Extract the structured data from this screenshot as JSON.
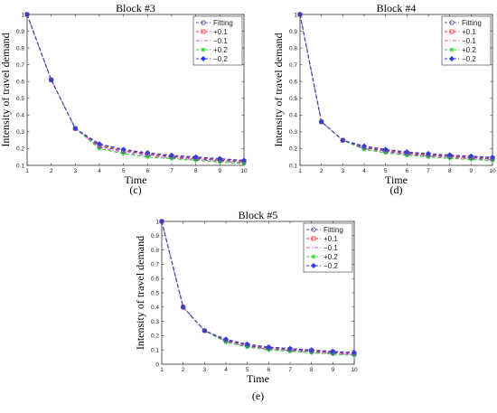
{
  "chart_data": [
    {
      "type": "line",
      "title": "Block #3",
      "caption": "(c)",
      "xlabel": "Time",
      "ylabel": "Intensity of travel demand",
      "x": [
        1,
        2,
        3,
        4,
        5,
        6,
        7,
        8,
        9,
        10
      ],
      "xlim": [
        1,
        10
      ],
      "ylim": [
        0.1,
        1
      ],
      "xticks": [
        "1",
        "2",
        "3",
        "4",
        "5",
        "6",
        "7",
        "8",
        "9",
        "10"
      ],
      "yticks": [
        "0.1",
        "0.2",
        "0.3",
        "0.4",
        "0.5",
        "0.6",
        "0.7",
        "0.8",
        "0.9",
        "1"
      ],
      "legend_position": "top-right",
      "series": [
        {
          "name": "Fitting",
          "color": "#4a4a9a",
          "marker": "circle",
          "values": [
            1.0,
            0.61,
            0.32,
            0.215,
            0.185,
            0.165,
            0.15,
            0.14,
            0.13,
            0.12
          ]
        },
        {
          "name": "+0.1",
          "color": "#ff3030",
          "marker": "square",
          "values": [
            1.0,
            0.61,
            0.32,
            0.222,
            0.19,
            0.17,
            0.155,
            0.145,
            0.135,
            0.125
          ]
        },
        {
          "name": "−0.1",
          "color": "#e050e0",
          "marker": "none",
          "values": [
            1.0,
            0.61,
            0.32,
            0.208,
            0.178,
            0.158,
            0.145,
            0.135,
            0.125,
            0.115
          ]
        },
        {
          "name": "+0.2",
          "color": "#30d030",
          "marker": "star",
          "values": [
            1.0,
            0.61,
            0.32,
            0.2,
            0.17,
            0.15,
            0.14,
            0.13,
            0.12,
            0.11
          ]
        },
        {
          "name": "−0.2",
          "color": "#2a3aee",
          "marker": "diamond",
          "values": [
            1.0,
            0.61,
            0.32,
            0.228,
            0.195,
            0.175,
            0.16,
            0.15,
            0.14,
            0.13
          ]
        }
      ]
    },
    {
      "type": "line",
      "title": "Block #4",
      "caption": "(d)",
      "xlabel": "Time",
      "ylabel": "Intensity of travel demand",
      "x": [
        1,
        2,
        3,
        4,
        5,
        6,
        7,
        8,
        9,
        10
      ],
      "xlim": [
        1,
        10
      ],
      "ylim": [
        0.1,
        1
      ],
      "xticks": [
        "1",
        "2",
        "3",
        "4",
        "5",
        "6",
        "7",
        "8",
        "9",
        "10"
      ],
      "yticks": [
        "0.1",
        "0.2",
        "0.3",
        "0.4",
        "0.5",
        "0.6",
        "0.7",
        "0.8",
        "0.9",
        "1"
      ],
      "legend_position": "top-right",
      "series": [
        {
          "name": "Fitting",
          "color": "#4a4a9a",
          "marker": "circle",
          "values": [
            1.0,
            0.36,
            0.25,
            0.205,
            0.185,
            0.17,
            0.16,
            0.152,
            0.145,
            0.138
          ]
        },
        {
          "name": "+0.1",
          "color": "#ff3030",
          "marker": "square",
          "values": [
            1.0,
            0.36,
            0.25,
            0.21,
            0.19,
            0.175,
            0.165,
            0.157,
            0.15,
            0.143
          ]
        },
        {
          "name": "−0.1",
          "color": "#e050e0",
          "marker": "none",
          "values": [
            1.0,
            0.36,
            0.25,
            0.2,
            0.18,
            0.165,
            0.155,
            0.147,
            0.14,
            0.133
          ]
        },
        {
          "name": "+0.2",
          "color": "#30d030",
          "marker": "star",
          "values": [
            1.0,
            0.36,
            0.25,
            0.195,
            0.175,
            0.16,
            0.15,
            0.142,
            0.135,
            0.128
          ]
        },
        {
          "name": "−0.2",
          "color": "#2a3aee",
          "marker": "diamond",
          "values": [
            1.0,
            0.36,
            0.25,
            0.215,
            0.195,
            0.18,
            0.17,
            0.162,
            0.155,
            0.148
          ]
        }
      ]
    },
    {
      "type": "line",
      "title": "Block #5",
      "caption": "(e)",
      "xlabel": "Time",
      "ylabel": "Intensity of travel demand",
      "x": [
        1,
        2,
        3,
        4,
        5,
        6,
        7,
        8,
        9,
        10
      ],
      "xlim": [
        1,
        10
      ],
      "ylim": [
        0,
        1
      ],
      "xticks": [
        "1",
        "2",
        "3",
        "4",
        "5",
        "6",
        "7",
        "8",
        "9",
        "10"
      ],
      "yticks": [
        "0",
        "0.1",
        "0.2",
        "0.3",
        "0.4",
        "0.5",
        "0.6",
        "0.7",
        "0.8",
        "0.9",
        "1"
      ],
      "legend_position": "top-right",
      "series": [
        {
          "name": "Fitting",
          "color": "#4a4a9a",
          "marker": "circle",
          "values": [
            1.0,
            0.4,
            0.235,
            0.165,
            0.13,
            0.11,
            0.1,
            0.09,
            0.08,
            0.072
          ]
        },
        {
          "name": "+0.1",
          "color": "#ff3030",
          "marker": "square",
          "values": [
            1.0,
            0.4,
            0.235,
            0.17,
            0.135,
            0.115,
            0.105,
            0.095,
            0.085,
            0.077
          ]
        },
        {
          "name": "−0.1",
          "color": "#e050e0",
          "marker": "none",
          "values": [
            1.0,
            0.4,
            0.235,
            0.16,
            0.125,
            0.105,
            0.095,
            0.085,
            0.075,
            0.067
          ]
        },
        {
          "name": "+0.2",
          "color": "#30d030",
          "marker": "star",
          "values": [
            1.0,
            0.4,
            0.235,
            0.155,
            0.12,
            0.1,
            0.09,
            0.08,
            0.07,
            0.062
          ]
        },
        {
          "name": "−0.2",
          "color": "#2a3aee",
          "marker": "diamond",
          "values": [
            1.0,
            0.4,
            0.235,
            0.175,
            0.14,
            0.12,
            0.11,
            0.1,
            0.09,
            0.082
          ]
        }
      ]
    }
  ]
}
